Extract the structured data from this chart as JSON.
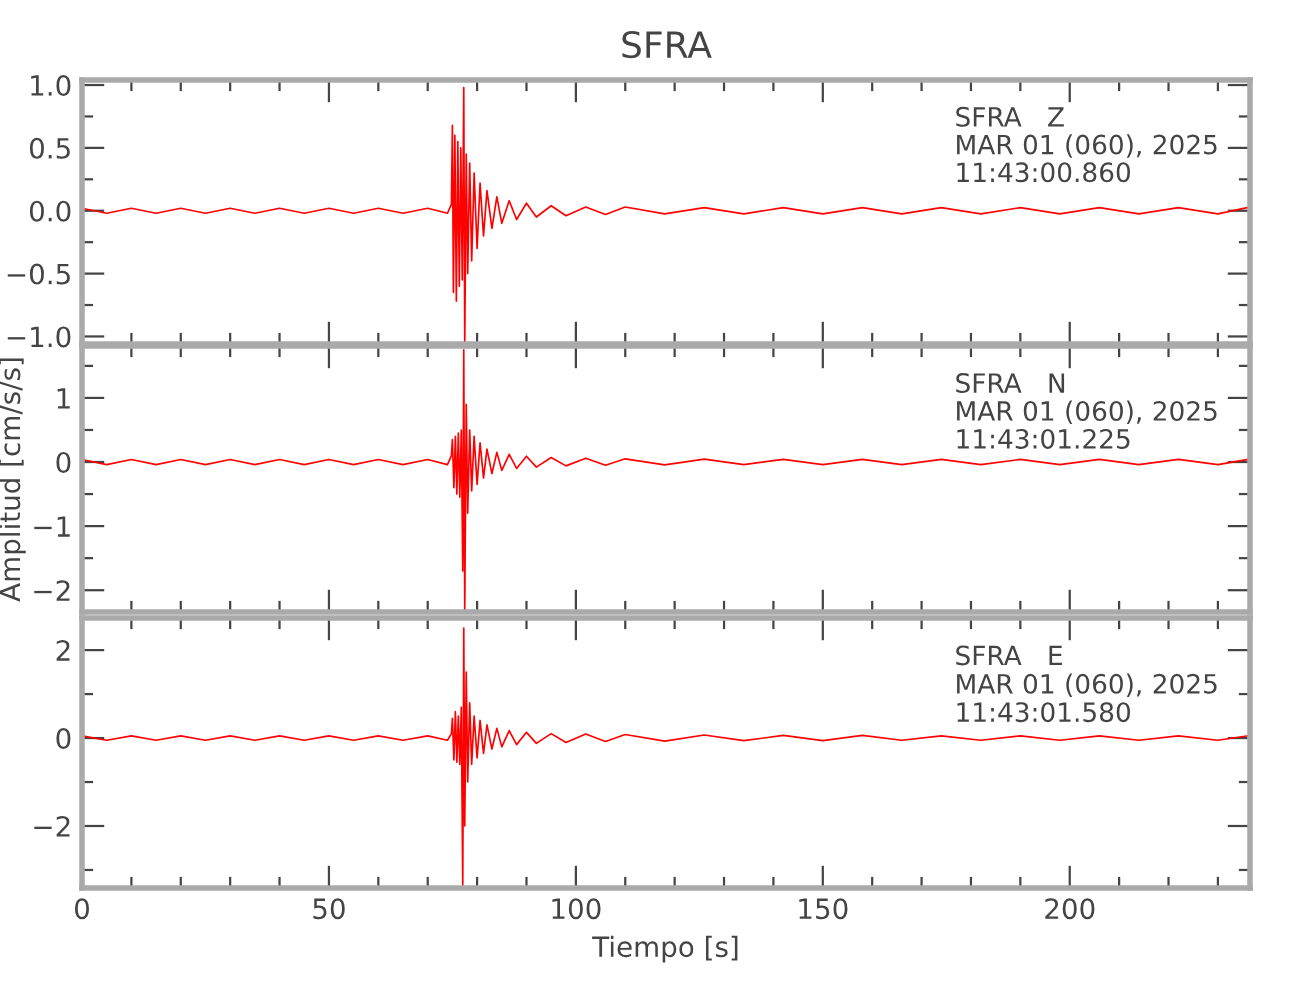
{
  "chart_data": [
    {
      "type": "line",
      "title": "SFRA",
      "annotations": [
        "SFRA   Z",
        "MAR 01 (060), 2025",
        "11:43:00.860"
      ],
      "xlim": [
        0,
        236.5
      ],
      "xticks": [
        0,
        50,
        100,
        150,
        200
      ],
      "ylim": [
        -1.06,
        1.04
      ],
      "yticks": [
        {
          "value": -1.0,
          "label": "−1.0"
        },
        {
          "value": -0.5,
          "label": "−0.5"
        },
        {
          "value": 0.0,
          "label": "0.0"
        },
        {
          "value": 0.5,
          "label": "0.5"
        },
        {
          "value": 1.0,
          "label": "1.0"
        }
      ],
      "tick_labels": "y",
      "grid": false,
      "legend": false,
      "series": [
        {
          "color": "#ff0000",
          "x": [
            0,
            5,
            10,
            15,
            20,
            25,
            30,
            35,
            40,
            45,
            50,
            55,
            60,
            65,
            70,
            74,
            74.8,
            75.0,
            75.2,
            75.5,
            75.8,
            76.1,
            76.4,
            76.7,
            77.0,
            77.3,
            77.5,
            77.8,
            78.1,
            78.5,
            78.9,
            79.4,
            80,
            80.6,
            81.3,
            82,
            83,
            84,
            85,
            86.5,
            88,
            90,
            92,
            95,
            98,
            102,
            106,
            110,
            118,
            126,
            134,
            142,
            150,
            158,
            166,
            174,
            182,
            190,
            198,
            206,
            214,
            222,
            230,
            236
          ],
          "values": [
            0.02,
            -0.02,
            0.02,
            -0.02,
            0.02,
            -0.02,
            0.02,
            -0.02,
            0.02,
            -0.02,
            0.02,
            -0.02,
            0.02,
            -0.02,
            0.02,
            -0.02,
            0.05,
            0.68,
            -0.65,
            0.6,
            -0.72,
            0.55,
            -0.6,
            0.5,
            -0.55,
            0.98,
            -1.05,
            0.45,
            -0.5,
            0.38,
            -0.4,
            0.3,
            -0.3,
            0.22,
            -0.2,
            0.16,
            -0.14,
            0.11,
            -0.1,
            0.08,
            -0.07,
            0.06,
            -0.05,
            0.04,
            -0.04,
            0.03,
            -0.03,
            0.03,
            -0.025,
            0.025,
            -0.025,
            0.025,
            -0.025,
            0.025,
            -0.025,
            0.025,
            -0.025,
            0.025,
            -0.025,
            0.025,
            -0.025,
            0.025,
            -0.025,
            0.025
          ]
        }
      ]
    },
    {
      "type": "line",
      "ylabel": "Amplitud [cm/s/s]",
      "annotations": [
        "SFRA   N",
        "MAR 01 (060), 2025",
        "11:43:01.225"
      ],
      "xlim": [
        0,
        236.5
      ],
      "xticks": [
        0,
        50,
        100,
        150,
        200
      ],
      "ylim": [
        -2.34,
        1.81
      ],
      "yticks": [
        {
          "value": -2,
          "label": "−2"
        },
        {
          "value": -1,
          "label": "−1"
        },
        0,
        1
      ],
      "tick_labels": "y",
      "grid": false,
      "legend": false,
      "series": [
        {
          "color": "#ff0000",
          "x": [
            0,
            5,
            10,
            15,
            20,
            25,
            30,
            35,
            40,
            45,
            50,
            55,
            60,
            65,
            70,
            74,
            74.8,
            75.0,
            75.3,
            75.6,
            75.9,
            76.2,
            76.5,
            76.8,
            77.1,
            77.3,
            77.5,
            77.8,
            78.1,
            78.5,
            78.9,
            79.4,
            80,
            80.6,
            81.3,
            82,
            83,
            84,
            85,
            86.5,
            88,
            90,
            92,
            95,
            98,
            102,
            106,
            110,
            118,
            126,
            134,
            142,
            150,
            158,
            166,
            174,
            182,
            190,
            198,
            206,
            214,
            222,
            230,
            236
          ],
          "values": [
            0.04,
            -0.04,
            0.04,
            -0.04,
            0.04,
            -0.04,
            0.04,
            -0.04,
            0.04,
            -0.04,
            0.04,
            -0.04,
            0.04,
            -0.04,
            0.04,
            -0.04,
            0.1,
            0.35,
            -0.4,
            0.4,
            -0.5,
            0.45,
            -0.55,
            0.5,
            -1.7,
            1.75,
            -2.3,
            0.9,
            -0.8,
            0.5,
            -0.45,
            0.4,
            -0.35,
            0.3,
            -0.25,
            0.2,
            -0.18,
            0.15,
            -0.13,
            0.12,
            -0.1,
            0.09,
            -0.08,
            0.07,
            -0.06,
            0.06,
            -0.05,
            0.05,
            -0.045,
            0.045,
            -0.04,
            0.04,
            -0.04,
            0.04,
            -0.04,
            0.04,
            -0.04,
            0.04,
            -0.04,
            0.04,
            -0.04,
            0.04,
            -0.04,
            0.04
          ]
        }
      ]
    },
    {
      "type": "line",
      "xlabel": "Tiempo [s]",
      "annotations": [
        "SFRA   E",
        "MAR 01 (060), 2025",
        "11:43:01.580"
      ],
      "xlim": [
        0,
        236.5
      ],
      "xticks": [
        0,
        50,
        100,
        150,
        200
      ],
      "ylim": [
        -3.41,
        2.73
      ],
      "yticks": [
        {
          "value": -2,
          "label": "−2"
        },
        0,
        2
      ],
      "grid": false,
      "legend": false,
      "series": [
        {
          "color": "#ff0000",
          "x": [
            0,
            5,
            10,
            15,
            20,
            25,
            30,
            35,
            40,
            45,
            50,
            55,
            60,
            65,
            70,
            74,
            74.8,
            75.0,
            75.3,
            75.6,
            75.9,
            76.2,
            76.5,
            76.8,
            77.1,
            77.3,
            77.5,
            77.8,
            78.1,
            78.5,
            78.9,
            79.4,
            80,
            80.6,
            81.3,
            82,
            83,
            84,
            85,
            86.5,
            88,
            90,
            92,
            95,
            98,
            102,
            106,
            110,
            118,
            126,
            134,
            142,
            150,
            158,
            166,
            174,
            182,
            190,
            198,
            206,
            214,
            222,
            230,
            236
          ],
          "values": [
            0.05,
            -0.05,
            0.05,
            -0.05,
            0.05,
            -0.05,
            0.05,
            -0.05,
            0.05,
            -0.05,
            0.05,
            -0.05,
            0.05,
            -0.05,
            0.05,
            -0.05,
            0.1,
            0.45,
            -0.5,
            0.6,
            -0.55,
            0.5,
            -0.6,
            0.7,
            -3.35,
            2.5,
            -2.0,
            1.5,
            -1.0,
            0.8,
            -0.6,
            0.5,
            -0.45,
            0.4,
            -0.35,
            0.3,
            -0.25,
            0.22,
            -0.2,
            0.17,
            -0.15,
            0.13,
            -0.12,
            0.1,
            -0.1,
            0.09,
            -0.08,
            0.08,
            -0.07,
            0.07,
            -0.06,
            0.06,
            -0.06,
            0.06,
            -0.05,
            0.05,
            -0.05,
            0.05,
            -0.05,
            0.05,
            -0.05,
            0.05,
            -0.05,
            0.05
          ]
        }
      ]
    }
  ]
}
